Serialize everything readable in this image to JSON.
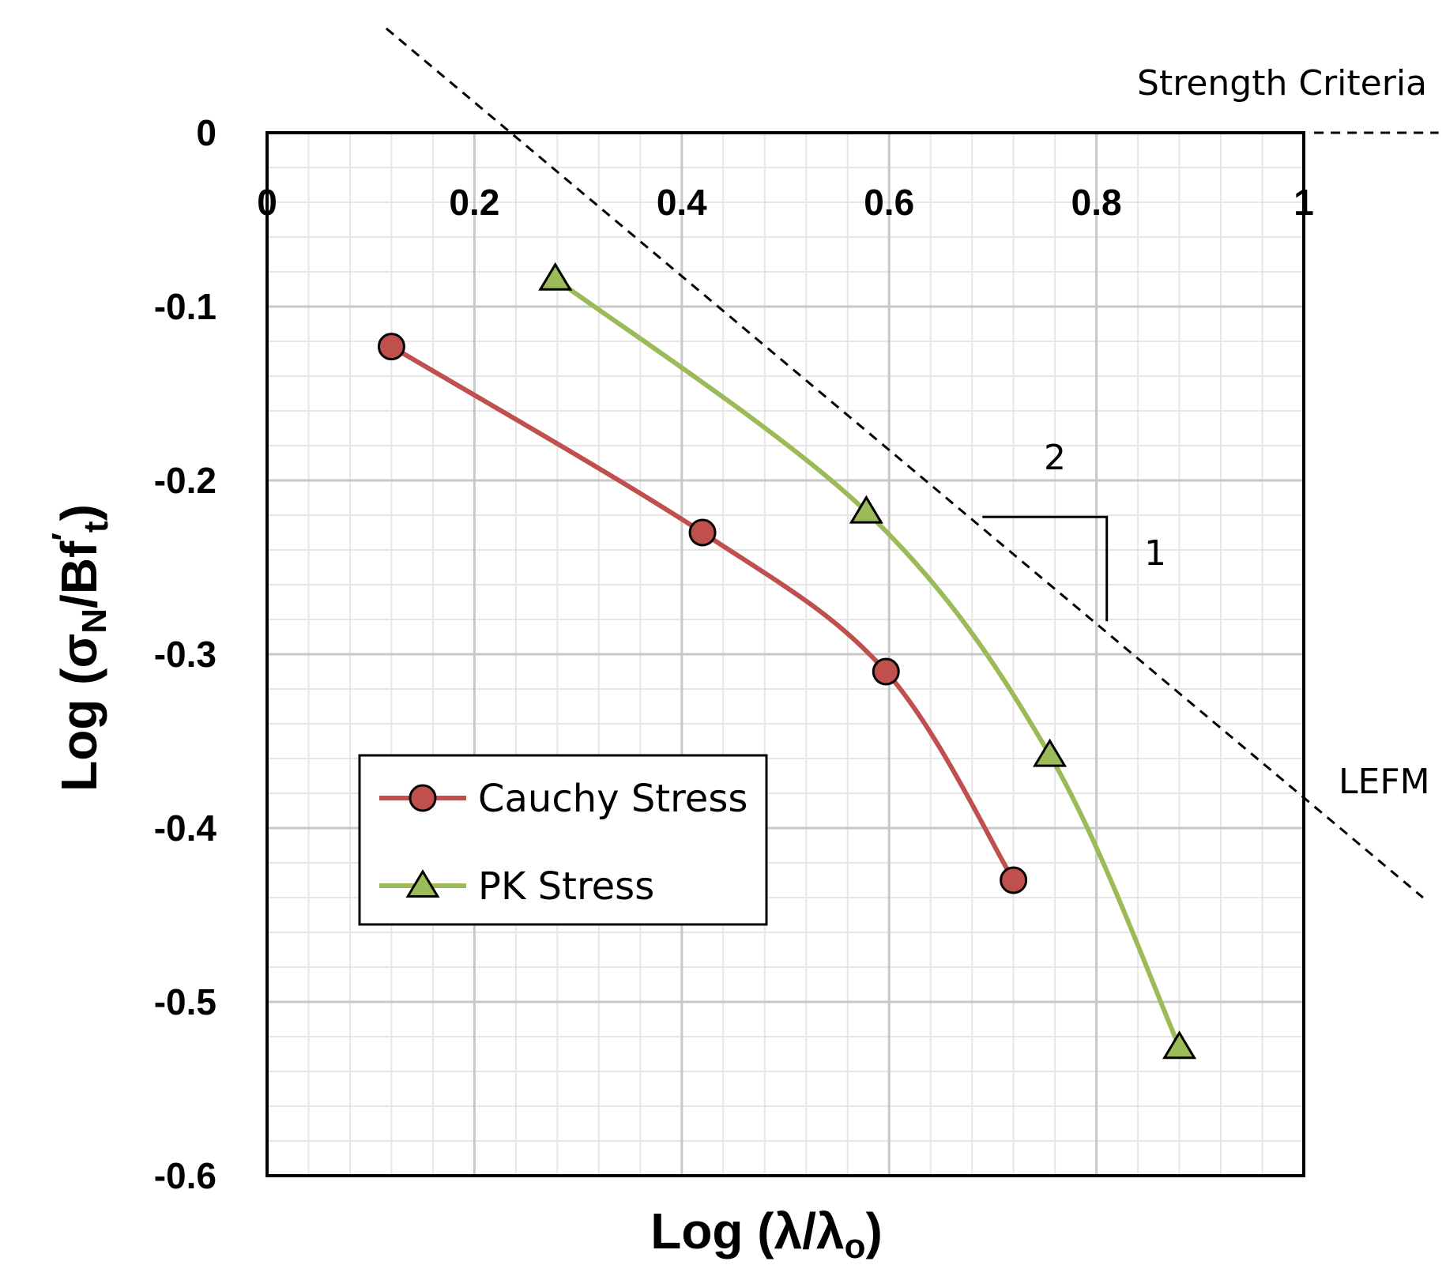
{
  "chart_data": {
    "type": "line",
    "xlabel": "Log (λ/λo)",
    "ylabel": "Log (σN/Bf′t)",
    "xlabel_parts": {
      "main": "Log (λ/λ",
      "sub": "o",
      "close": ")"
    },
    "ylabel_parts": {
      "main": "Log (σ",
      "sub1": "N",
      "mid": "/Bf",
      "sup": "′",
      "sub2": "t",
      "close": ")"
    },
    "xlim": [
      0,
      1
    ],
    "ylim": [
      -0.6,
      0
    ],
    "x_ticks": [
      "0",
      "0.2",
      "0.4",
      "0.6",
      "0.8",
      "1"
    ],
    "x_tick_values": [
      0,
      0.2,
      0.4,
      0.6,
      0.8,
      1
    ],
    "y_ticks": [
      "0",
      "-0.1",
      "-0.2",
      "-0.3",
      "-0.4",
      "-0.5",
      "-0.6"
    ],
    "y_tick_values": [
      0,
      -0.1,
      -0.2,
      -0.3,
      -0.4,
      -0.5,
      -0.6
    ],
    "grid": true,
    "series": [
      {
        "name": "Cauchy Stress",
        "marker": "circle",
        "color": "#c0504d",
        "x": [
          0.12,
          0.42,
          0.597,
          0.72
        ],
        "y": [
          -0.123,
          -0.23,
          -0.31,
          -0.43
        ]
      },
      {
        "name": "PK Stress",
        "marker": "triangle",
        "color": "#9bbb59",
        "x": [
          0.278,
          0.578,
          0.755,
          0.88
        ],
        "y": [
          -0.084,
          -0.218,
          -0.358,
          -0.526
        ]
      }
    ],
    "reference_lines": [
      {
        "name": "Strength Criteria",
        "style": "dashed",
        "from": [
          1.01,
          0
        ],
        "to": [
          1.13,
          0
        ]
      },
      {
        "name": "LEFM",
        "style": "dashed",
        "from": [
          0.115,
          0.06
        ],
        "to": [
          1.115,
          -0.44
        ]
      }
    ],
    "slope_triangle": {
      "run_label": "2",
      "rise_label": "1",
      "corner": [
        0.81,
        -0.221
      ],
      "start": [
        0.69,
        -0.221
      ],
      "end": [
        0.81,
        -0.281
      ]
    },
    "annotations": {
      "strength": "Strength Criteria",
      "lefm": "LEFM"
    },
    "legend": {
      "position": "lower-left"
    }
  }
}
